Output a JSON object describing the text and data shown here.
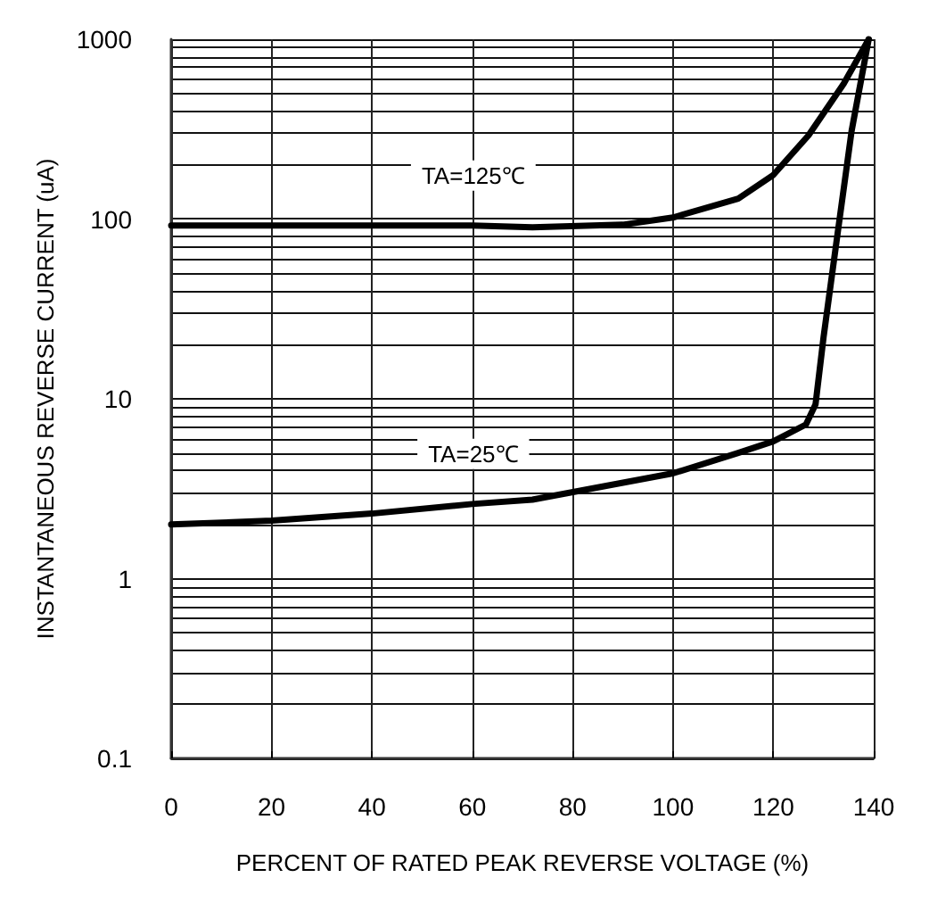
{
  "chart_data": {
    "type": "line",
    "xlabel": "PERCENT OF RATED PEAK REVERSE VOLTAGE (%)",
    "ylabel": "INSTANTANEOUS REVERSE CURRENT (uA)",
    "series": [
      {
        "color": "#000000",
        "x": [
          0,
          20,
          40,
          60,
          72,
          90,
          100,
          113,
          120,
          127,
          134,
          139
        ],
        "values": [
          92,
          92,
          92,
          92,
          90,
          93,
          102,
          130,
          176,
          292,
          565,
          1000
        ]
      },
      {
        "color": "#000000",
        "x": [
          0,
          20,
          40,
          60,
          72,
          100,
          113,
          120,
          126.5,
          128.4,
          130,
          132.8,
          135.6,
          139
        ],
        "values": [
          2,
          2.1,
          2.3,
          2.6,
          2.75,
          3.85,
          5,
          5.8,
          7.2,
          9.3,
          22,
          83,
          310,
          1000
        ]
      }
    ],
    "annotations": [
      "TA=125℃",
      "TA=25℃"
    ],
    "xlim": [
      0,
      140
    ],
    "xticks": [
      0,
      20,
      40,
      60,
      80,
      100,
      120,
      140
    ],
    "ylim": [
      0.1,
      1000
    ],
    "yticks": [
      0.1,
      1,
      10,
      100,
      1000
    ],
    "log": "y",
    "grid": true,
    "marker": "none",
    "line_style": "solid"
  }
}
